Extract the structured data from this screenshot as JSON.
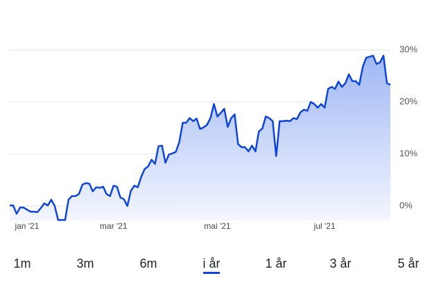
{
  "chart_data": {
    "type": "area",
    "values": [
      0.1,
      0.1,
      -1.5,
      -0.3,
      -0.3,
      -0.7,
      -1.1,
      -1.1,
      -1.2,
      -0.4,
      0.5,
      0.1,
      1.2,
      0,
      -2.7,
      -2.7,
      -2.7,
      1.2,
      1.9,
      1.9,
      2.3,
      4.1,
      4.4,
      4.3,
      2.8,
      3.6,
      3.5,
      3.7,
      2.3,
      1.9,
      3.9,
      3.7,
      1.6,
      1.3,
      0,
      2.9,
      3.9,
      3.6,
      5.6,
      7.1,
      7.6,
      8.9,
      8.1,
      11.5,
      11.6,
      8.3,
      9.9,
      10.1,
      10.4,
      12.3,
      16,
      16,
      16.9,
      16.3,
      16.8,
      14.8,
      15.1,
      15.6,
      16.9,
      19.6,
      17.2,
      17.9,
      18.7,
      15.2,
      16.9,
      17.6,
      11.9,
      11.3,
      11.3,
      10.5,
      11.6,
      10.5,
      14.3,
      14.9,
      17.2,
      16.9,
      16.3,
      9.6,
      16.3,
      16.3,
      16.4,
      16.3,
      16.9,
      16.7,
      18,
      18.5,
      18.3,
      20,
      19.6,
      18.9,
      19.6,
      18.9,
      22.5,
      22.9,
      22.5,
      23.9,
      22.9,
      23.6,
      25.3,
      24,
      24,
      23.3,
      26.7,
      28.5,
      28.7,
      28.9,
      27.3,
      27.6,
      28.9,
      23.6,
      23.3
    ],
    "color": "#0c44dc",
    "xlim": [
      0,
      110
    ],
    "xticks": [
      {
        "value": 5,
        "label": "jan '21"
      },
      {
        "value": 30,
        "label": "mar '21"
      },
      {
        "value": 60,
        "label": "mai '21"
      },
      {
        "value": 91,
        "label": "jul '21"
      }
    ],
    "ylim": [
      -2.8,
      33
    ],
    "yticks": [
      {
        "value": 0,
        "label": "0%"
      },
      {
        "value": 10,
        "label": "10%"
      },
      {
        "value": 20,
        "label": "20%"
      },
      {
        "value": 30,
        "label": "30%"
      }
    ],
    "grid": true
  },
  "tabs": [
    "1m",
    "3m",
    "6m",
    "i år",
    "1 år",
    "3 år",
    "5 år"
  ],
  "active_tab": 3
}
